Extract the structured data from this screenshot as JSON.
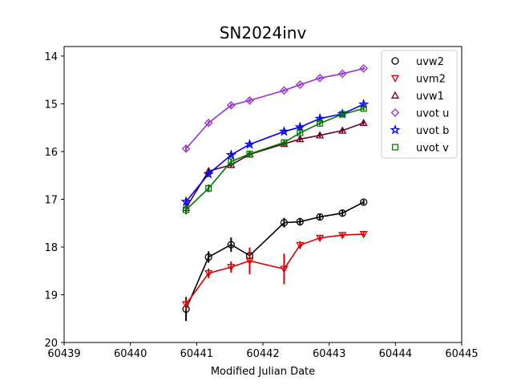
{
  "chart_data": {
    "type": "scatter",
    "title": "SN2024inv",
    "xlabel": "Modified Julian Date",
    "ylabel": "",
    "xlim": [
      60439,
      60445
    ],
    "ylim": [
      20,
      13.8
    ],
    "y_inverted": true,
    "xticks": [
      "60439",
      "60440",
      "60441",
      "60442",
      "60443",
      "60444",
      "60445"
    ],
    "yticks": [
      "14",
      "15",
      "16",
      "17",
      "18",
      "19",
      "20"
    ],
    "grid": false,
    "legend_position": "top-right",
    "series": [
      {
        "name": "uvw2",
        "color": "#000000",
        "marker": "circle",
        "x": [
          60440.84,
          60441.18,
          60441.52,
          60441.8,
          60442.32,
          60442.56,
          60442.86,
          60443.2,
          60443.52
        ],
        "y": [
          19.3,
          18.21,
          17.95,
          18.18,
          17.49,
          17.47,
          17.37,
          17.29,
          17.06
        ],
        "err": [
          0.25,
          0.12,
          0.15,
          0.15,
          0.1,
          0.08,
          0.07,
          0.07,
          0.05
        ]
      },
      {
        "name": "uvm2",
        "color": "#dd0000",
        "marker": "triangle-down",
        "x": [
          60440.84,
          60441.18,
          60441.52,
          60441.8,
          60442.32,
          60442.56,
          60442.86,
          60443.2,
          60443.52
        ],
        "y": [
          19.2,
          18.55,
          18.42,
          18.29,
          18.46,
          17.96,
          17.81,
          17.75,
          17.73
        ],
        "err": [
          0.12,
          0.1,
          0.12,
          0.28,
          0.32,
          0.08,
          0.06,
          0.05,
          0.05
        ]
      },
      {
        "name": "uvw1",
        "color": "#6b0020",
        "marker": "triangle-up",
        "x": [
          60440.84,
          60441.18,
          60441.52,
          60441.8,
          60442.32,
          60442.56,
          60442.86,
          60443.2,
          60443.52
        ],
        "y": [
          17.18,
          16.41,
          16.28,
          16.06,
          15.84,
          15.74,
          15.66,
          15.56,
          15.4
        ],
        "err": [
          0.08,
          0.06,
          0.06,
          0.06,
          0.05,
          0.05,
          0.04,
          0.04,
          0.04
        ]
      },
      {
        "name": "uvot u",
        "color": "#9a30d0",
        "marker": "diamond",
        "x": [
          60440.84,
          60441.18,
          60441.52,
          60441.8,
          60442.32,
          60442.56,
          60442.86,
          60443.2,
          60443.52
        ],
        "y": [
          15.94,
          15.4,
          15.03,
          14.93,
          14.72,
          14.6,
          14.46,
          14.37,
          14.26
        ],
        "err": [
          0.05,
          0.04,
          0.04,
          0.04,
          0.03,
          0.03,
          0.03,
          0.03,
          0.03
        ]
      },
      {
        "name": "uvot b",
        "color": "#0000ee",
        "marker": "star",
        "x": [
          60440.84,
          60441.18,
          60441.52,
          60441.8,
          60442.32,
          60442.56,
          60442.86,
          60443.2,
          60443.52
        ],
        "y": [
          17.05,
          16.47,
          16.07,
          15.85,
          15.58,
          15.49,
          15.31,
          15.21,
          15.01
        ],
        "err": [
          0.08,
          0.06,
          0.05,
          0.05,
          0.04,
          0.04,
          0.04,
          0.04,
          0.03
        ]
      },
      {
        "name": "uvot v",
        "color": "#007700",
        "marker": "square",
        "x": [
          60440.84,
          60441.18,
          60441.52,
          60441.8,
          60442.32,
          60442.56,
          60442.86,
          60443.2,
          60443.52
        ],
        "y": [
          17.22,
          16.77,
          16.21,
          16.05,
          15.81,
          15.61,
          15.41,
          15.22,
          15.1
        ],
        "err": [
          0.1,
          0.08,
          0.06,
          0.05,
          0.05,
          0.04,
          0.04,
          0.04,
          0.04
        ]
      }
    ]
  }
}
